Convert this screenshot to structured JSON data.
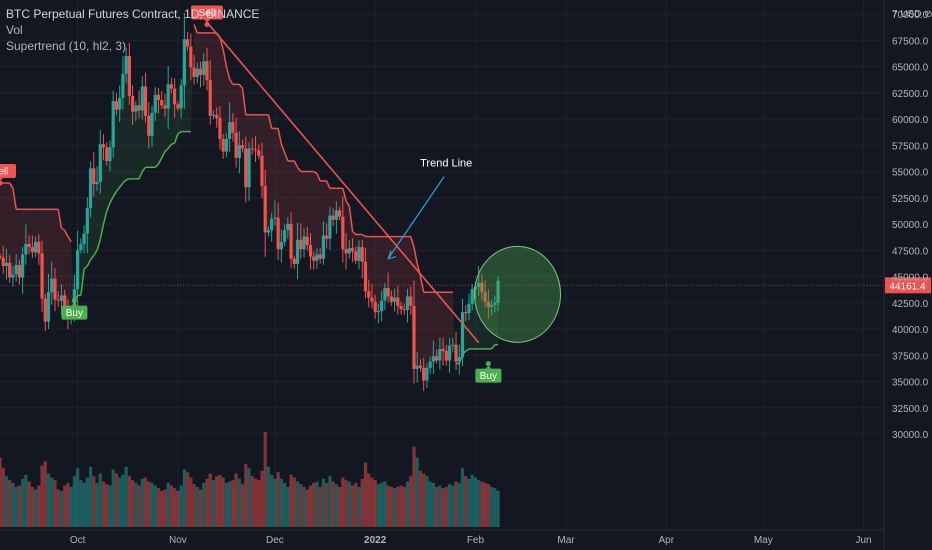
{
  "legend": {
    "title": "BTC Perpetual Futures Contract, 1D, BINANCE",
    "volume_label": "Vol",
    "indicator_label": "Supertrend (10, hl2, 3)"
  },
  "currency_label": "USD",
  "colors": {
    "background": "#131722",
    "up": "#26a69a",
    "down": "#ef5350",
    "supertrend_up": "#4caf50",
    "supertrend_down": "#f05350",
    "trend_line": "#ef5350",
    "annotation_arrow": "#2ba3d6",
    "circle_fill": "rgba(76,175,80,0.35)",
    "grid": "#1e222d"
  },
  "annotations": {
    "trend_line_label": "Trend Line",
    "sell_label": "Sell",
    "buy_label": "Buy",
    "signals": [
      {
        "type": "sell",
        "date": "2021-09-07",
        "price": 53900
      },
      {
        "type": "buy",
        "date": "2021-09-30",
        "price": 42700
      },
      {
        "type": "sell",
        "date": "2021-11-10",
        "price": 69000
      },
      {
        "type": "buy",
        "date": "2022-02-05",
        "price": 36700
      }
    ],
    "trend_line": {
      "start": {
        "date": "2021-11-10",
        "price": 69200
      },
      "end": {
        "date": "2022-02-02",
        "price": 38700
      }
    },
    "arrow_target": {
      "date": "2022-01-05",
      "price": 46700
    },
    "highlight": {
      "center_date": "2022-02-14",
      "center_price": 43300
    }
  },
  "chart_data": {
    "type": "candlestick",
    "symbol": "BTC Perpetual Futures Contract",
    "interval": "1D",
    "exchange": "BINANCE",
    "y_axis": {
      "side": "right",
      "ylim": [
        30000,
        71300
      ],
      "ticks": [
        30000,
        32500,
        35000,
        37500,
        40000,
        42500,
        45000,
        47500,
        50000,
        52500,
        55000,
        57500,
        60000,
        62500,
        65000,
        67500,
        70000
      ],
      "tick_labels": [
        "30000.0",
        "32500.0",
        "35000.0",
        "37500.0",
        "40000.0",
        "42500.0",
        "45000.0",
        "47500.0",
        "50000.0",
        "52500.0",
        "55000.0",
        "57500.0",
        "60000.0",
        "62500.0",
        "65000.0",
        "67500.0",
        "70000.0"
      ]
    },
    "x_axis": {
      "range": [
        "2021-09-07",
        "2022-06-05"
      ],
      "labels": [
        {
          "date": "2021-10-01",
          "text": "Oct"
        },
        {
          "date": "2021-11-01",
          "text": "Nov"
        },
        {
          "date": "2021-12-01",
          "text": "Dec"
        },
        {
          "date": "2022-01-01",
          "text": "2022"
        },
        {
          "date": "2022-02-01",
          "text": "Feb"
        },
        {
          "date": "2022-03-01",
          "text": "Mar"
        },
        {
          "date": "2022-04-01",
          "text": "Apr"
        },
        {
          "date": "2022-05-01",
          "text": "May"
        },
        {
          "date": "2022-06-01",
          "text": "Jun"
        }
      ]
    },
    "last_price": {
      "value": 44161.4,
      "text": "44161.4"
    },
    "start_date": "2021-09-07",
    "series_close": [
      46800,
      46000,
      46300,
      44900,
      45200,
      46100,
      44900,
      47100,
      48100,
      47800,
      47300,
      48300,
      47200,
      42900,
      40700,
      43500,
      44800,
      42800,
      42700,
      43200,
      42200,
      41000,
      41500,
      43800,
      47500,
      48100,
      49100,
      51500,
      55300,
      53800,
      54000,
      57600,
      57300,
      56000,
      57300,
      61700,
      60900,
      62000,
      64300,
      66000,
      62200,
      60700,
      61300,
      60800,
      63100,
      60300,
      58400,
      60600,
      62300,
      61800,
      61300,
      61000,
      63300,
      62900,
      61400,
      61000,
      63200,
      67600,
      66900,
      64900,
      64000,
      64800,
      64200,
      65500,
      63700,
      60300,
      60400,
      60100,
      58100,
      56900,
      58100,
      59700,
      58700,
      56300,
      57500,
      57200,
      53500,
      57200,
      57100,
      57000,
      56500,
      53600,
      49200,
      49400,
      50500,
      50600,
      47600,
      48300,
      49400,
      50000,
      46700,
      46200,
      48500,
      47600,
      48800,
      48000,
      46900,
      46500,
      47100,
      46700,
      48900,
      48600,
      50800,
      50400,
      51300,
      50700,
      47600,
      47200,
      47700,
      47400,
      46500,
      47800,
      46400,
      43600,
      43000,
      42600,
      41600,
      41700,
      42700,
      43900,
      43100,
      42600,
      43000,
      42200,
      41900,
      41800,
      43100,
      42200,
      36200,
      36500,
      36300,
      35100,
      36300,
      36900,
      37400,
      37000,
      38100,
      37900,
      37000,
      38400,
      38500,
      36900,
      37300,
      41600,
      41500,
      42400,
      43800,
      44000,
      44400,
      43500,
      42600,
      42100,
      42300,
      42500,
      44600
    ],
    "volume": [
      52,
      44,
      38,
      35,
      33,
      30,
      31,
      36,
      39,
      34,
      30,
      28,
      31,
      46,
      49,
      40,
      37,
      35,
      28,
      27,
      31,
      33,
      30,
      38,
      44,
      35,
      33,
      37,
      45,
      38,
      33,
      40,
      34,
      32,
      31,
      43,
      40,
      37,
      39,
      45,
      38,
      35,
      33,
      31,
      36,
      37,
      34,
      33,
      31,
      29,
      27,
      28,
      33,
      31,
      29,
      27,
      31,
      43,
      41,
      37,
      32,
      30,
      28,
      33,
      36,
      40,
      35,
      38,
      39,
      37,
      33,
      34,
      35,
      40,
      36,
      32,
      47,
      44,
      38,
      36,
      35,
      42,
      71,
      45,
      39,
      36,
      41,
      36,
      33,
      30,
      39,
      37,
      34,
      32,
      30,
      28,
      31,
      33,
      34,
      30,
      36,
      33,
      38,
      34,
      32,
      30,
      37,
      35,
      34,
      31,
      33,
      30,
      36,
      48,
      40,
      37,
      35,
      32,
      33,
      34,
      31,
      30,
      29,
      30,
      31,
      30,
      34,
      38,
      60,
      52,
      42,
      40,
      38,
      34,
      33,
      30,
      31,
      29,
      30,
      32,
      31,
      34,
      33,
      44,
      38,
      36,
      39,
      37,
      35,
      34,
      33,
      32,
      30,
      29,
      27
    ],
    "supertrend": [
      53900,
      53900,
      53900,
      53900,
      53400,
      51400,
      51400,
      51400,
      51400,
      51400,
      51400,
      51400,
      51400,
      51400,
      51400,
      51400,
      51400,
      51400,
      51400,
      49600,
      49400,
      48800,
      48300,
      42700,
      43200,
      43200,
      45700,
      46000,
      46600,
      47000,
      47500,
      48500,
      50000,
      51200,
      52000,
      52600,
      53100,
      53500,
      53900,
      54200,
      54300,
      54300,
      54300,
      54300,
      55000,
      55400,
      55400,
      55400,
      55400,
      55700,
      56300,
      56900,
      57200,
      57600,
      57700,
      58600,
      58800,
      58800,
      58800,
      58800,
      69000,
      68200,
      68200,
      68200,
      68200,
      68200,
      68200,
      68200,
      67800,
      66600,
      65000,
      63800,
      63300,
      63300,
      63300,
      62900,
      60400,
      60400,
      60400,
      60400,
      60400,
      60400,
      60400,
      60400,
      59100,
      59100,
      59100,
      57600,
      56800,
      56000,
      56000,
      56000,
      55400,
      55000,
      55000,
      55000,
      55000,
      55000,
      54800,
      54100,
      54100,
      54100,
      53400,
      53400,
      53400,
      53400,
      53400,
      52200,
      51700,
      49300,
      49000,
      49000,
      49000,
      48800,
      48800,
      48800,
      48800,
      48800,
      48800,
      48800,
      48800,
      48800,
      48800,
      48800,
      48800,
      48800,
      48800,
      48800,
      47800,
      46200,
      45000,
      43500,
      43500,
      43500,
      43500,
      43500,
      43500,
      43500,
      43500,
      43500,
      43500,
      36700,
      36700,
      37600,
      37900,
      38100,
      38100,
      38100,
      38100,
      38100,
      38100,
      38100,
      38100,
      38500,
      38500
    ]
  }
}
